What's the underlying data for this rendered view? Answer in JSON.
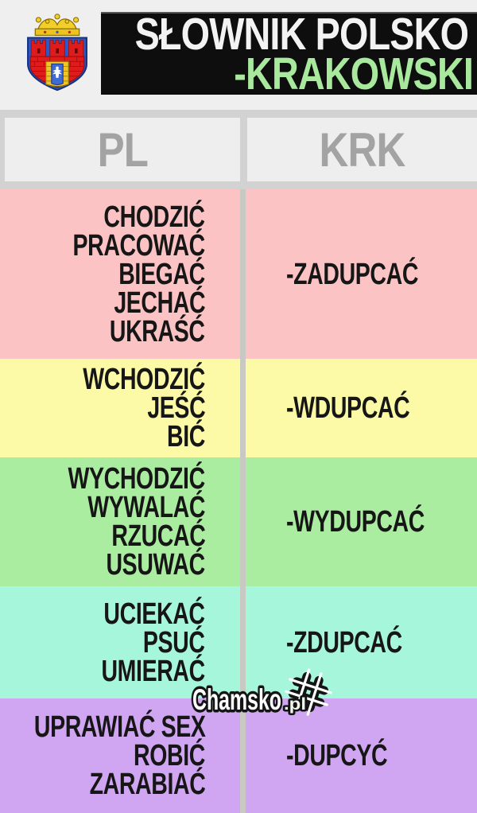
{
  "page": {
    "background": "#efefef"
  },
  "header": {
    "crest_icon": "krakow-coat-of-arms",
    "banner_bg": "#0e0e0e",
    "title_line1": "SŁOWNIK POLSKO",
    "title_line1_color": "#f3f3f3",
    "title_line2": "-KRAKOWSKI",
    "title_line2_color": "#a8e99e"
  },
  "table": {
    "header_band_color": "#d2d2d2",
    "header_cell_color": "#eeeeee",
    "header_text_color": "#a3a3a3",
    "divider_color": "#c9c9c3",
    "text_color": "#161616",
    "columns": [
      {
        "label": "PL"
      },
      {
        "label": "KRK"
      }
    ],
    "rows": [
      {
        "color": "#fcc3c4",
        "pl": [
          "CHODZIĆ",
          "PRACOWAĆ",
          "BIEGAĆ",
          "JECHAĆ",
          "UKRAŚĆ"
        ],
        "krk": "-ZADUPCAĆ"
      },
      {
        "color": "#fcfaa6",
        "pl": [
          "WCHODZIĆ",
          "JEŚĆ",
          "BIĆ"
        ],
        "krk": "-WDUPCAĆ"
      },
      {
        "color": "#abeda0",
        "pl": [
          "WYCHODZIĆ",
          "WYWALAĆ",
          "RZUCAĆ",
          "USUWAĆ"
        ],
        "krk": "-WYDUPCAĆ"
      },
      {
        "color": "#a6f6dc",
        "pl": [
          "UCIEKAĆ",
          "PSUĆ",
          "UMIERAĆ"
        ],
        "krk": "-ZDUPCAĆ"
      },
      {
        "color": "#d0a5f2",
        "pl": [
          "UPRAWIAĆ SEX",
          "ROBIĆ",
          "ZARABIAĆ"
        ],
        "krk": "-DUPCYĆ"
      }
    ]
  },
  "watermark": {
    "site": "Chamsko",
    "tld": ".pl",
    "icon": "tilted-hash-logo-icon"
  }
}
